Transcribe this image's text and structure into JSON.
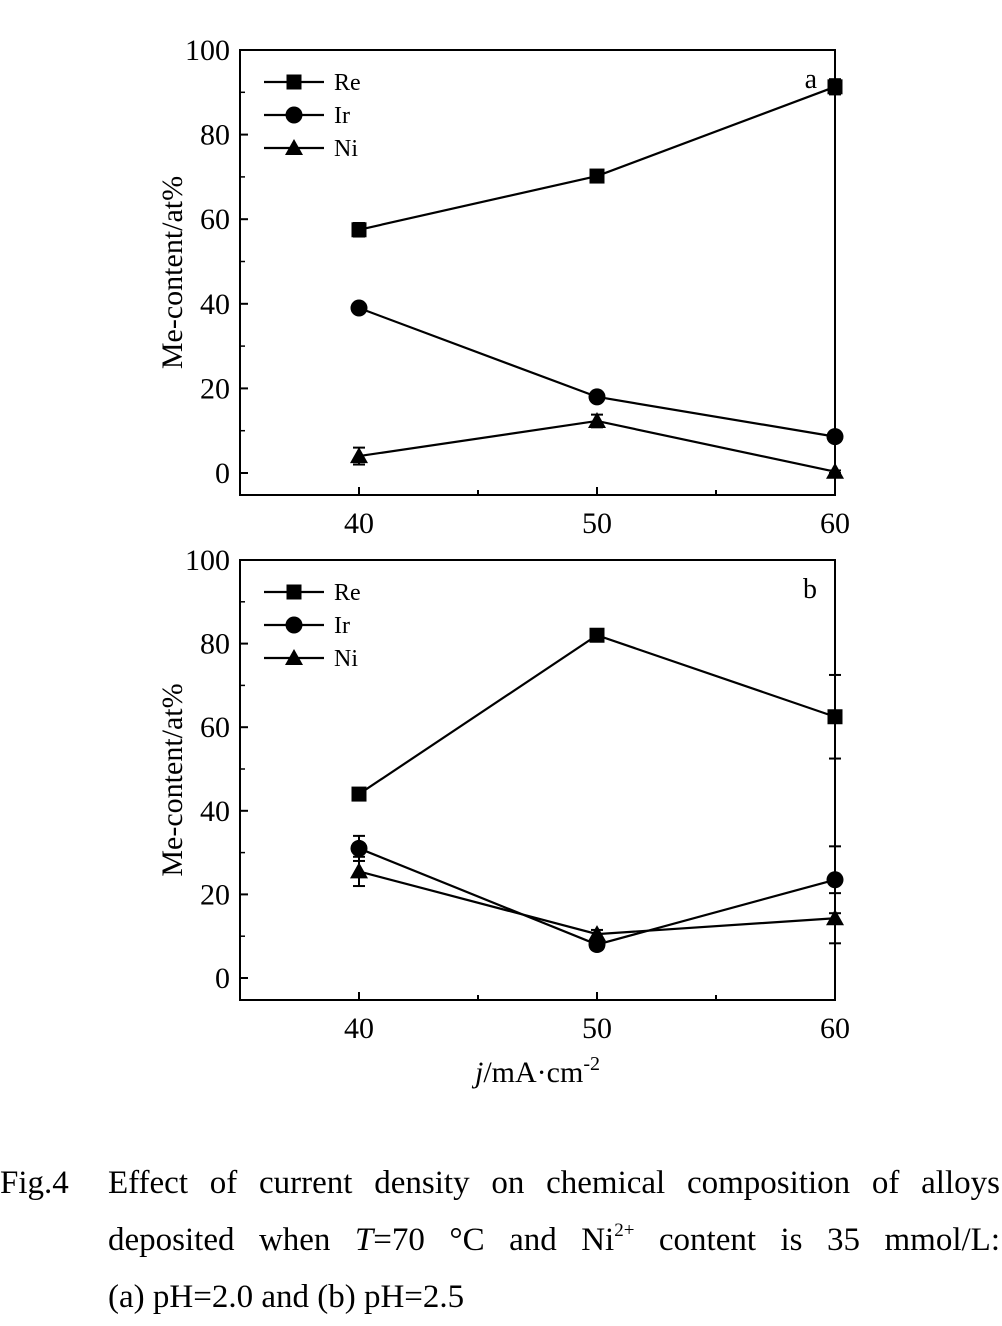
{
  "chart_data": [
    {
      "type": "line",
      "panel_label": "a",
      "ylabel": "Me-content/at%",
      "ylim": [
        0,
        100
      ],
      "yticks": [
        0,
        20,
        40,
        60,
        80,
        100
      ],
      "xlim": [
        35,
        60
      ],
      "xticks": [
        40,
        50,
        60
      ],
      "x": [
        40,
        50,
        60
      ],
      "legend_position": "top-left",
      "series": [
        {
          "name": "Re",
          "marker": "square",
          "values": [
            57.5,
            70.2,
            91.3
          ],
          "errors": [
            1.6,
            1.0,
            1.8
          ]
        },
        {
          "name": "Ir",
          "marker": "circle",
          "values": [
            39.0,
            18.0,
            8.6
          ],
          "errors": [
            0.5,
            0.5,
            0.5
          ]
        },
        {
          "name": "Ni",
          "marker": "triangle",
          "values": [
            4.0,
            12.3,
            0.3
          ],
          "errors": [
            2.0,
            1.5,
            0.3
          ]
        }
      ]
    },
    {
      "type": "line",
      "panel_label": "b",
      "ylabel": "Me-content/at%",
      "xlabel_italic": "j",
      "xlabel_rest": "/mA·cm",
      "xlabel_sup": "-2",
      "ylim": [
        0,
        100
      ],
      "yticks": [
        0,
        20,
        40,
        60,
        80,
        100
      ],
      "xlim": [
        35,
        60
      ],
      "xticks": [
        40,
        50,
        60
      ],
      "x": [
        40,
        50,
        60
      ],
      "legend_position": "top-left",
      "series": [
        {
          "name": "Re",
          "marker": "square",
          "values": [
            44.0,
            82.0,
            62.5
          ],
          "errors": [
            0.5,
            0.5,
            10.0
          ]
        },
        {
          "name": "Ir",
          "marker": "circle",
          "values": [
            31.0,
            8.0,
            23.5
          ],
          "errors": [
            3.0,
            0.5,
            8.0
          ]
        },
        {
          "name": "Ni",
          "marker": "triangle",
          "values": [
            25.5,
            10.5,
            14.3
          ],
          "errors": [
            3.5,
            1.0,
            6.0
          ]
        }
      ]
    }
  ],
  "caption": {
    "label": "Fig.4",
    "line1": "Effect of current density on chemical composition of alloys",
    "line2_before_T": "deposited when ",
    "line2_T": "T",
    "line2_mid": "=70 °C and Ni",
    "line2_sup": "2+",
    "line2_after": " content is 35 mmol/L:",
    "line3": "(a) pH=2.0 and (b) pH=2.5"
  }
}
